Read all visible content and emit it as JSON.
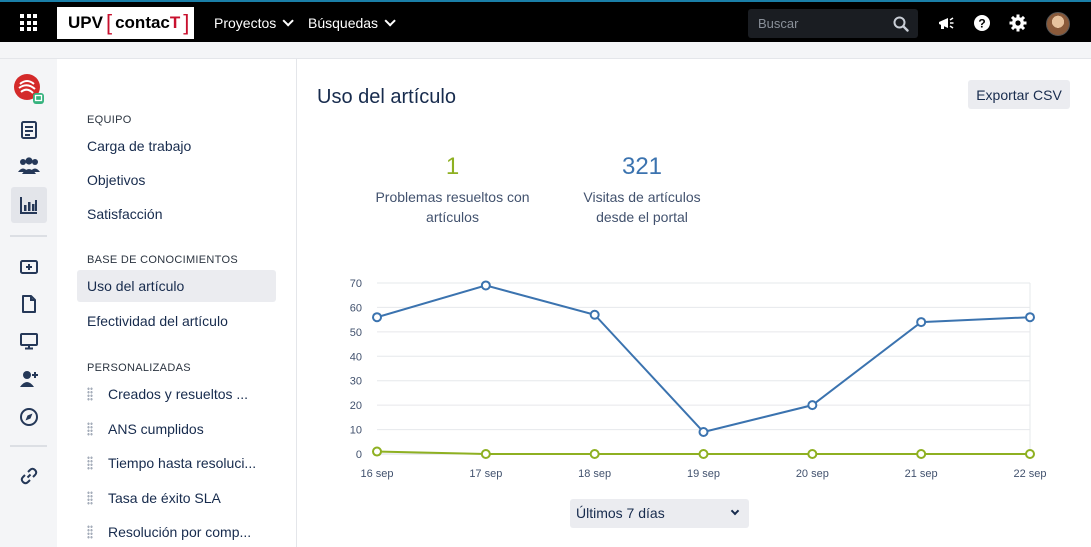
{
  "topbar": {
    "logo": {
      "part1": "UPV",
      "part2": "contac",
      "part3": "T"
    },
    "nav": [
      {
        "label": "Proyectos"
      },
      {
        "label": "Búsquedas"
      }
    ],
    "search_placeholder": "Buscar",
    "icons": [
      "apps-grid-icon",
      "search-icon",
      "megaphone-icon",
      "help-icon",
      "settings-icon",
      "avatar"
    ]
  },
  "rail": {
    "icons": [
      "project-avatar",
      "queues-icon",
      "customers-icon",
      "reports-icon",
      "add-item-icon",
      "document-icon",
      "monitor-icon",
      "add-user-icon",
      "compass-icon",
      "link-icon"
    ]
  },
  "sidenav": {
    "sections": [
      {
        "heading": "EQUIPO",
        "items": [
          "Carga de trabajo",
          "Objetivos",
          "Satisfacción"
        ]
      },
      {
        "heading": "BASE DE CONOCIMIENTOS",
        "items": [
          "Uso del artículo",
          "Efectividad del artículo"
        ]
      },
      {
        "heading": "PERSONALIZADAS",
        "items": [
          "Creados y resueltos ...",
          "ANS cumplidos",
          "Tiempo hasta resoluci...",
          "Tasa de éxito SLA",
          "Resolución por comp..."
        ]
      }
    ],
    "active_item": "Uso del artículo"
  },
  "main": {
    "title": "Uso del artículo",
    "export_label": "Exportar CSV",
    "stats": [
      {
        "value": "1",
        "label_line1": "Problemas resueltos con",
        "label_line2": "artículos",
        "color": "#8eb021"
      },
      {
        "value": "321",
        "label_line1": "Visitas de artículos",
        "label_line2": "desde el portal",
        "color": "#3b73af"
      }
    ],
    "range_label": "Últimos 7 días"
  },
  "chart_data": {
    "type": "line",
    "categories": [
      "16 sep",
      "17 sep",
      "18 sep",
      "19 sep",
      "20 sep",
      "21 sep",
      "22 sep"
    ],
    "ylim": [
      0,
      70
    ],
    "yticks": [
      0,
      10,
      20,
      30,
      40,
      50,
      60,
      70
    ],
    "grid": true,
    "series": [
      {
        "color": "#3b73af",
        "values": [
          56,
          69,
          57,
          9,
          20,
          54,
          56
        ]
      },
      {
        "color": "#8eb021",
        "values": [
          1,
          0,
          0,
          0,
          0,
          0,
          0
        ]
      }
    ]
  }
}
